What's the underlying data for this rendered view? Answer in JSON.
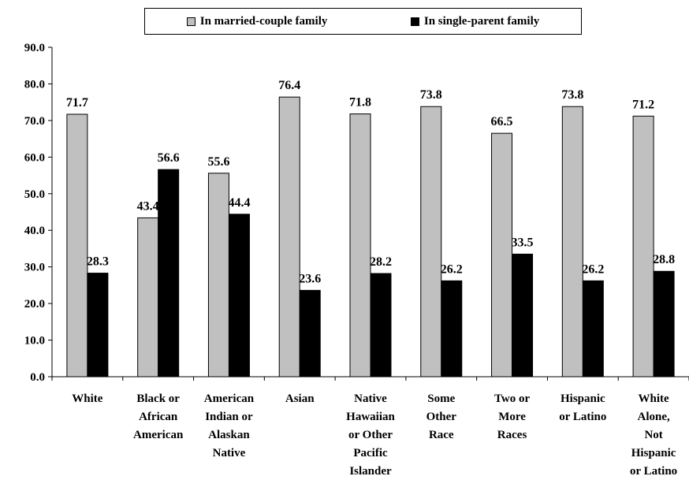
{
  "chart_data": {
    "type": "bar",
    "categories": [
      [
        "White"
      ],
      [
        "Black or",
        "African",
        "American"
      ],
      [
        "American",
        "Indian or",
        "Alaskan",
        "Native"
      ],
      [
        "Asian"
      ],
      [
        "Native",
        "Hawaiian",
        "or Other",
        "Pacific",
        "Islander"
      ],
      [
        "Some",
        "Other",
        "Race"
      ],
      [
        "Two or",
        "More",
        "Races"
      ],
      [
        "Hispanic",
        "or Latino"
      ],
      [
        "White",
        "Alone,",
        "Not",
        "Hispanic",
        "or Latino"
      ]
    ],
    "series": [
      {
        "name": "In married-couple family",
        "color": "#c0c0c0",
        "values": [
          71.7,
          43.4,
          55.6,
          76.4,
          71.8,
          73.8,
          66.5,
          73.8,
          71.2
        ],
        "labels": [
          "71.7",
          "43.4",
          "55.6",
          "76.4",
          "71.8",
          "73.8",
          "66.5",
          "73.8",
          "71.2"
        ]
      },
      {
        "name": "In single-parent family",
        "color": "#000000",
        "values": [
          28.3,
          56.6,
          44.4,
          23.6,
          28.2,
          26.2,
          33.5,
          26.2,
          28.8
        ],
        "labels": [
          "28.3",
          "56.6",
          "44.4",
          "23.6",
          "28.2",
          "26.2",
          "33.5",
          "26.2",
          "28.8"
        ]
      }
    ],
    "ylim": [
      0,
      90
    ],
    "yticks": [
      "0.0",
      "10.0",
      "20.0",
      "30.0",
      "40.0",
      "50.0",
      "60.0",
      "70.0",
      "80.0",
      "90.0"
    ],
    "grid": false,
    "legend_position": "top"
  }
}
